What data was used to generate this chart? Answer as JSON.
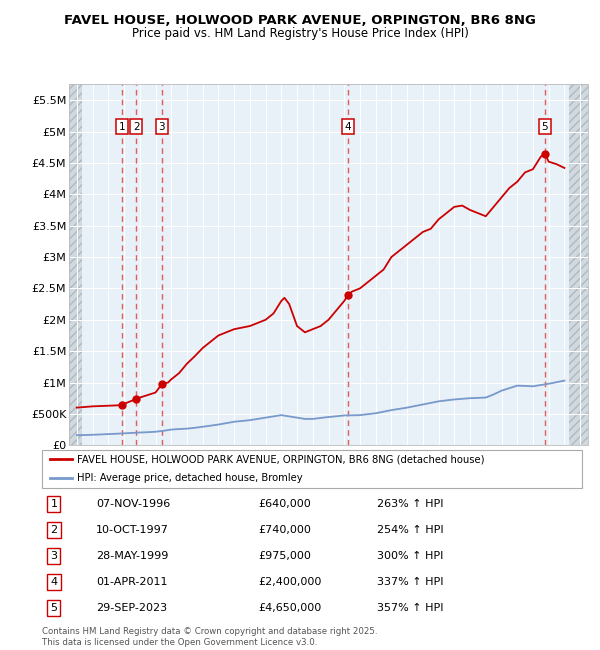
{
  "title": "FAVEL HOUSE, HOLWOOD PARK AVENUE, ORPINGTON, BR6 8NG",
  "subtitle": "Price paid vs. HM Land Registry's House Price Index (HPI)",
  "xlim": [
    1993.5,
    2026.5
  ],
  "ylim": [
    0,
    5750000
  ],
  "yticks": [
    0,
    500000,
    1000000,
    1500000,
    2000000,
    2500000,
    3000000,
    3500000,
    4000000,
    4500000,
    5000000,
    5500000
  ],
  "ytick_labels": [
    "£0",
    "£500K",
    "£1M",
    "£1.5M",
    "£2M",
    "£2.5M",
    "£3M",
    "£3.5M",
    "£4M",
    "£4.5M",
    "£5M",
    "£5.5M"
  ],
  "hpi_color": "#7799cc",
  "price_color": "#cc0000",
  "sale_color": "#cc0000",
  "dashed_line_color": "#dd4444",
  "chart_bg": "#e8f0f8",
  "hatch_bg": "#d8d8d8",
  "grid_color": "white",
  "legend_line1": "FAVEL HOUSE, HOLWOOD PARK AVENUE, ORPINGTON, BR6 8NG (detached house)",
  "legend_line2": "HPI: Average price, detached house, Bromley",
  "sales": [
    {
      "num": 1,
      "year": 1996.85,
      "price": 640000,
      "date": "07-NOV-1996",
      "pct": "263%",
      "dir": "↑"
    },
    {
      "num": 2,
      "year": 1997.78,
      "price": 740000,
      "date": "10-OCT-1997",
      "pct": "254%",
      "dir": "↑"
    },
    {
      "num": 3,
      "year": 1999.41,
      "price": 975000,
      "date": "28-MAY-1999",
      "pct": "300%",
      "dir": "↑"
    },
    {
      "num": 4,
      "year": 2011.25,
      "price": 2400000,
      "date": "01-APR-2011",
      "pct": "337%",
      "dir": "↑"
    },
    {
      "num": 5,
      "year": 2023.75,
      "price": 4650000,
      "date": "29-SEP-2023",
      "pct": "357%",
      "dir": "↑"
    }
  ],
  "hpi_x": [
    1994,
    1994.5,
    1995,
    1995.5,
    1996,
    1996.5,
    1997,
    1997.5,
    1998,
    1998.5,
    1999,
    1999.5,
    2000,
    2000.5,
    2001,
    2001.5,
    2002,
    2002.5,
    2003,
    2003.5,
    2004,
    2004.5,
    2005,
    2005.5,
    2006,
    2006.5,
    2007,
    2007.5,
    2008,
    2008.5,
    2009,
    2009.5,
    2010,
    2010.5,
    2011,
    2011.5,
    2012,
    2012.5,
    2013,
    2013.5,
    2014,
    2014.5,
    2015,
    2015.5,
    2016,
    2016.5,
    2017,
    2017.5,
    2018,
    2018.5,
    2019,
    2019.5,
    2020,
    2020.5,
    2021,
    2021.5,
    2022,
    2022.5,
    2023,
    2023.5,
    2024,
    2024.5,
    2025
  ],
  "hpi_y": [
    160000,
    163000,
    167000,
    172000,
    178000,
    183000,
    190000,
    196000,
    203000,
    208000,
    215000,
    230000,
    250000,
    258000,
    265000,
    278000,
    295000,
    312000,
    330000,
    352000,
    375000,
    387000,
    400000,
    420000,
    440000,
    460000,
    480000,
    460000,
    440000,
    420000,
    420000,
    435000,
    450000,
    462000,
    475000,
    477000,
    480000,
    495000,
    510000,
    535000,
    560000,
    580000,
    600000,
    625000,
    650000,
    675000,
    700000,
    715000,
    730000,
    740000,
    750000,
    755000,
    760000,
    810000,
    870000,
    910000,
    950000,
    945000,
    940000,
    960000,
    980000,
    1005000,
    1030000
  ],
  "price_x": [
    1994,
    1994.5,
    1995,
    1995.5,
    1996,
    1996.5,
    1996.85,
    1997,
    1997.5,
    1997.78,
    1998,
    1998.5,
    1999,
    1999.41,
    1999.8,
    2000,
    2000.5,
    2001,
    2001.5,
    2002,
    2002.5,
    2003,
    2003.5,
    2004,
    2004.5,
    2005,
    2005.5,
    2006,
    2006.5,
    2007,
    2007.2,
    2007.5,
    2008,
    2008.5,
    2009,
    2009.5,
    2010,
    2010.5,
    2011,
    2011.25,
    2011.5,
    2012,
    2012.5,
    2013,
    2013.5,
    2014,
    2014.5,
    2015,
    2015.5,
    2016,
    2016.5,
    2017,
    2017.5,
    2018,
    2018.5,
    2019,
    2019.5,
    2020,
    2020.5,
    2021,
    2021.5,
    2022,
    2022.5,
    2023,
    2023.5,
    2023.75,
    2024,
    2024.5,
    2025
  ],
  "price_y": [
    600000,
    610000,
    620000,
    625000,
    630000,
    635000,
    640000,
    660000,
    710000,
    740000,
    760000,
    800000,
    840000,
    975000,
    1000000,
    1050000,
    1150000,
    1300000,
    1420000,
    1550000,
    1650000,
    1750000,
    1800000,
    1850000,
    1875000,
    1900000,
    1950000,
    2000000,
    2100000,
    2300000,
    2350000,
    2250000,
    1900000,
    1800000,
    1850000,
    1900000,
    2000000,
    2150000,
    2300000,
    2400000,
    2450000,
    2500000,
    2600000,
    2700000,
    2800000,
    3000000,
    3100000,
    3200000,
    3300000,
    3400000,
    3450000,
    3600000,
    3700000,
    3800000,
    3820000,
    3750000,
    3700000,
    3650000,
    3800000,
    3950000,
    4100000,
    4200000,
    4350000,
    4400000,
    4600000,
    4650000,
    4520000,
    4480000,
    4420000
  ],
  "footnote": "Contains HM Land Registry data © Crown copyright and database right 2025.\nThis data is licensed under the Open Government Licence v3.0."
}
